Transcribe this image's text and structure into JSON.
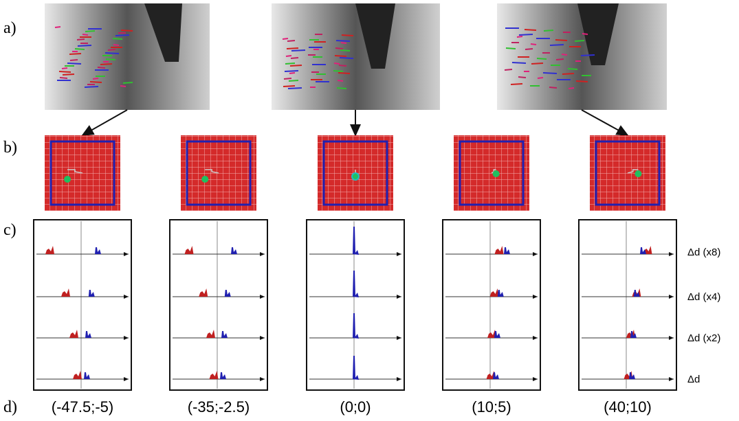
{
  "row_labels": [
    "a)",
    "b)",
    "c)",
    "d)"
  ],
  "scale_labels": [
    "Δd (x8)",
    "Δd (x4)",
    "Δd (x2)",
    "Δd"
  ],
  "panels": [
    {
      "label": "(-47.5;-5)"
    },
    {
      "label": "(-35;-2.5)"
    },
    {
      "label": "(0;0)"
    },
    {
      "label": "(10;5)"
    },
    {
      "label": "(40;10)"
    }
  ]
}
